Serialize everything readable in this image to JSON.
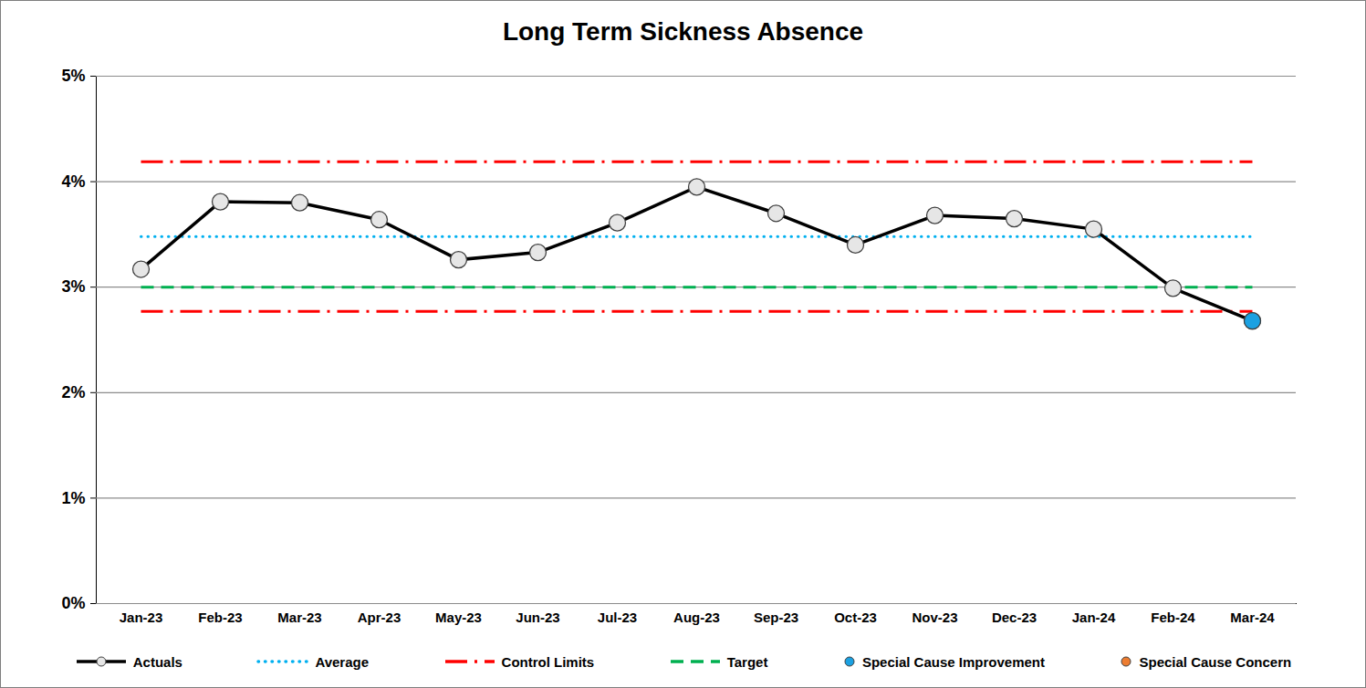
{
  "chart_data": {
    "type": "line",
    "title": "Long Term Sickness Absence",
    "categories": [
      "Jan-23",
      "Feb-23",
      "Mar-23",
      "Apr-23",
      "May-23",
      "Jun-23",
      "Jul-23",
      "Aug-23",
      "Sep-23",
      "Oct-23",
      "Nov-23",
      "Dec-23",
      "Jan-24",
      "Feb-24",
      "Mar-24"
    ],
    "series": [
      {
        "name": "Actuals",
        "color": "#000000",
        "marker": "circle",
        "line_style": "solid",
        "values": [
          3.17,
          3.81,
          3.8,
          3.64,
          3.26,
          3.33,
          3.61,
          3.95,
          3.7,
          3.4,
          3.68,
          3.65,
          3.55,
          2.99,
          2.68
        ]
      },
      {
        "name": "Average",
        "color": "#00b0f0",
        "line_style": "dotted",
        "values": [
          3.48,
          3.48,
          3.48,
          3.48,
          3.48,
          3.48,
          3.48,
          3.48,
          3.48,
          3.48,
          3.48,
          3.48,
          3.48,
          3.48,
          3.48
        ]
      },
      {
        "name": "Control Limits",
        "color": "#ff0000",
        "line_style": "dashdot",
        "values": [
          4.19,
          4.19,
          4.19,
          4.19,
          4.19,
          4.19,
          4.19,
          4.19,
          4.19,
          4.19,
          4.19,
          4.19,
          4.19,
          4.19,
          4.19
        ],
        "lower": [
          2.77,
          2.77,
          2.77,
          2.77,
          2.77,
          2.77,
          2.77,
          2.77,
          2.77,
          2.77,
          2.77,
          2.77,
          2.77,
          2.77,
          2.77
        ]
      },
      {
        "name": "Target",
        "color": "#00b050",
        "line_style": "dashed",
        "values": [
          3.0,
          3.0,
          3.0,
          3.0,
          3.0,
          3.0,
          3.0,
          3.0,
          3.0,
          3.0,
          3.0,
          3.0,
          3.0,
          3.0,
          3.0
        ]
      },
      {
        "name": "Special Cause Improvement",
        "type": "scatter",
        "color": "#1ba1e2",
        "marker": "circle",
        "values": [
          null,
          null,
          null,
          null,
          null,
          null,
          null,
          null,
          null,
          null,
          null,
          null,
          null,
          null,
          2.68
        ]
      },
      {
        "name": "Special Cause Concern",
        "type": "scatter",
        "color": "#ed7d31",
        "marker": "circle",
        "values": [
          null,
          null,
          null,
          null,
          null,
          null,
          null,
          null,
          null,
          null,
          null,
          null,
          null,
          null,
          null
        ]
      }
    ],
    "ylim": [
      0,
      5
    ],
    "yticks": [
      {
        "value": 0,
        "label": "0%"
      },
      {
        "value": 1,
        "label": "1%"
      },
      {
        "value": 2,
        "label": "2%"
      },
      {
        "value": 3,
        "label": "3%"
      },
      {
        "value": 4,
        "label": "4%"
      },
      {
        "value": 5,
        "label": "5%"
      }
    ],
    "grid": true,
    "legend": "bottom"
  }
}
